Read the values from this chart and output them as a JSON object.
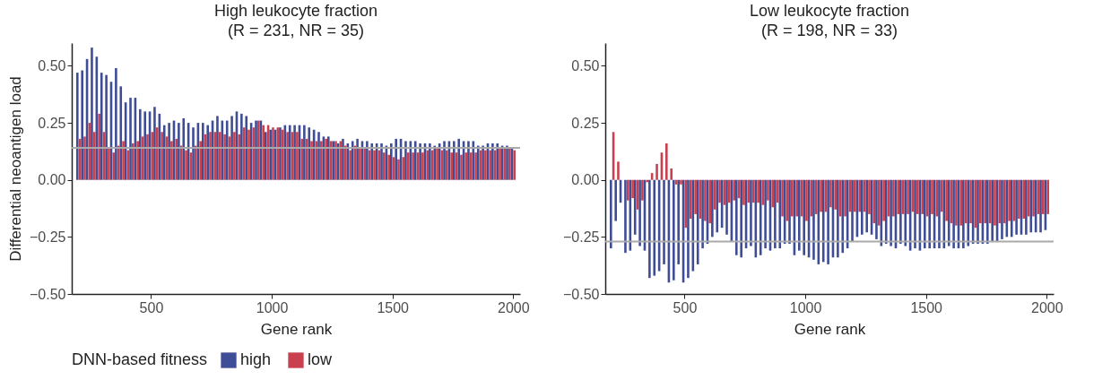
{
  "chart_data": [
    {
      "type": "bar",
      "title": "High leukocyte fraction",
      "subtitle": "(R = 231, NR = 35)",
      "xlabel": "Gene rank",
      "ylabel": "Differential neoantigen load",
      "legend_title": "DNN-based fitness",
      "legend": "bottom",
      "x": [
        200,
        220,
        240,
        260,
        280,
        300,
        320,
        340,
        360,
        380,
        400,
        420,
        440,
        460,
        480,
        500,
        520,
        540,
        560,
        580,
        600,
        620,
        640,
        660,
        680,
        700,
        720,
        740,
        760,
        780,
        800,
        820,
        840,
        860,
        880,
        900,
        920,
        940,
        960,
        980,
        1000,
        1020,
        1040,
        1060,
        1080,
        1100,
        1120,
        1140,
        1160,
        1180,
        1200,
        1220,
        1240,
        1260,
        1280,
        1300,
        1320,
        1340,
        1360,
        1380,
        1400,
        1420,
        1440,
        1460,
        1480,
        1500,
        1520,
        1540,
        1560,
        1580,
        1600,
        1620,
        1640,
        1660,
        1680,
        1700,
        1720,
        1740,
        1760,
        1780,
        1800,
        1820,
        1840,
        1860,
        1880,
        1900,
        1920,
        1940,
        1960,
        1980,
        2000
      ],
      "series": [
        {
          "name": "high",
          "color": "#3f4d97",
          "values": [
            0.47,
            0.48,
            0.53,
            0.58,
            0.54,
            0.47,
            0.46,
            0.43,
            0.49,
            0.41,
            0.34,
            0.36,
            0.36,
            0.31,
            0.3,
            0.3,
            0.32,
            0.29,
            0.24,
            0.25,
            0.26,
            0.25,
            0.27,
            0.25,
            0.23,
            0.25,
            0.25,
            0.24,
            0.26,
            0.28,
            0.26,
            0.26,
            0.28,
            0.3,
            0.29,
            0.28,
            0.25,
            0.26,
            0.26,
            0.21,
            0.22,
            0.22,
            0.23,
            0.24,
            0.24,
            0.24,
            0.24,
            0.24,
            0.23,
            0.22,
            0.21,
            0.19,
            0.19,
            0.17,
            0.16,
            0.18,
            0.16,
            0.17,
            0.18,
            0.17,
            0.17,
            0.16,
            0.16,
            0.16,
            0.15,
            0.16,
            0.18,
            0.18,
            0.17,
            0.17,
            0.17,
            0.16,
            0.16,
            0.16,
            0.15,
            0.16,
            0.17,
            0.17,
            0.17,
            0.18,
            0.17,
            0.17,
            0.17,
            0.15,
            0.15,
            0.16,
            0.16,
            0.16,
            0.15,
            0.15,
            0.14
          ]
        },
        {
          "name": "low",
          "color": "#c9404f",
          "values": [
            0.18,
            0.19,
            0.25,
            0.21,
            0.29,
            0.21,
            0.14,
            0.12,
            0.15,
            0.17,
            0.13,
            0.16,
            0.17,
            0.19,
            0.2,
            0.21,
            0.23,
            0.21,
            0.19,
            0.17,
            0.18,
            0.15,
            0.13,
            0.12,
            0.15,
            0.17,
            0.2,
            0.21,
            0.21,
            0.21,
            0.2,
            0.19,
            0.21,
            0.2,
            0.23,
            0.22,
            0.23,
            0.26,
            0.24,
            0.24,
            0.23,
            0.23,
            0.22,
            0.21,
            0.21,
            0.21,
            0.18,
            0.18,
            0.17,
            0.17,
            0.17,
            0.18,
            0.17,
            0.17,
            0.17,
            0.15,
            0.13,
            0.15,
            0.14,
            0.14,
            0.13,
            0.13,
            0.13,
            0.12,
            0.11,
            0.1,
            0.09,
            0.1,
            0.12,
            0.12,
            0.12,
            0.12,
            0.13,
            0.13,
            0.14,
            0.13,
            0.13,
            0.12,
            0.12,
            0.11,
            0.12,
            0.12,
            0.12,
            0.13,
            0.13,
            0.13,
            0.13,
            0.14,
            0.14,
            0.14,
            0.13
          ]
        }
      ],
      "xlim": [
        190,
        2010
      ],
      "xticks": [
        500,
        1000,
        1500,
        2000
      ],
      "ylim": [
        -0.5,
        0.6
      ],
      "yticks": [
        {
          "value": -0.5,
          "label": "−0.50"
        },
        {
          "value": -0.25,
          "label": "−0.25"
        },
        {
          "value": 0,
          "label": "0.00"
        },
        {
          "value": 0.25,
          "label": "0.25"
        },
        {
          "value": 0.5,
          "label": "0.50"
        }
      ],
      "ref_lines": [
        {
          "axis": "y",
          "value": 0.14,
          "color": "#aaaaaa"
        }
      ]
    },
    {
      "type": "bar",
      "title": "Low leukocyte fraction",
      "subtitle": "(R = 198, NR = 33)",
      "xlabel": "Gene rank",
      "x": [
        200,
        220,
        240,
        260,
        280,
        300,
        320,
        340,
        360,
        380,
        400,
        420,
        440,
        460,
        480,
        500,
        520,
        540,
        560,
        580,
        600,
        620,
        640,
        660,
        680,
        700,
        720,
        740,
        760,
        780,
        800,
        820,
        840,
        860,
        880,
        900,
        920,
        940,
        960,
        980,
        1000,
        1020,
        1040,
        1060,
        1080,
        1100,
        1120,
        1140,
        1160,
        1180,
        1200,
        1220,
        1240,
        1260,
        1280,
        1300,
        1320,
        1340,
        1360,
        1380,
        1400,
        1420,
        1440,
        1460,
        1480,
        1500,
        1520,
        1540,
        1560,
        1580,
        1600,
        1620,
        1640,
        1660,
        1680,
        1700,
        1720,
        1740,
        1760,
        1780,
        1800,
        1820,
        1840,
        1860,
        1880,
        1900,
        1920,
        1940,
        1960,
        1980,
        2000
      ],
      "series": [
        {
          "name": "high",
          "color": "#3f4d97",
          "values": [
            -0.3,
            -0.18,
            -0.1,
            -0.32,
            -0.31,
            -0.24,
            -0.29,
            -0.31,
            -0.43,
            -0.42,
            -0.4,
            -0.37,
            -0.45,
            -0.44,
            -0.37,
            -0.45,
            -0.43,
            -0.4,
            -0.37,
            -0.3,
            -0.28,
            -0.25,
            -0.23,
            -0.21,
            -0.24,
            -0.27,
            -0.33,
            -0.34,
            -0.3,
            -0.29,
            -0.34,
            -0.33,
            -0.3,
            -0.31,
            -0.3,
            -0.3,
            -0.28,
            -0.28,
            -0.33,
            -0.31,
            -0.33,
            -0.34,
            -0.35,
            -0.37,
            -0.36,
            -0.37,
            -0.34,
            -0.34,
            -0.32,
            -0.3,
            -0.27,
            -0.25,
            -0.24,
            -0.23,
            -0.24,
            -0.26,
            -0.29,
            -0.28,
            -0.29,
            -0.3,
            -0.28,
            -0.29,
            -0.31,
            -0.3,
            -0.31,
            -0.3,
            -0.3,
            -0.3,
            -0.3,
            -0.3,
            -0.29,
            -0.3,
            -0.3,
            -0.3,
            -0.29,
            -0.28,
            -0.28,
            -0.28,
            -0.28,
            -0.27,
            -0.27,
            -0.26,
            -0.25,
            -0.25,
            -0.24,
            -0.24,
            -0.24,
            -0.23,
            -0.23,
            -0.23,
            -0.22
          ]
        },
        {
          "name": "low",
          "color": "#c9404f",
          "values": [
            0.21,
            0.08,
            0.0,
            -0.09,
            -0.08,
            -0.13,
            -0.09,
            -0.01,
            0.03,
            0.07,
            0.12,
            0.16,
            0.05,
            -0.02,
            -0.02,
            -0.21,
            -0.17,
            -0.15,
            -0.17,
            -0.18,
            -0.19,
            -0.13,
            -0.1,
            -0.11,
            -0.1,
            -0.09,
            -0.08,
            -0.11,
            -0.1,
            -0.1,
            -0.1,
            -0.11,
            -0.09,
            -0.12,
            -0.1,
            -0.16,
            -0.18,
            -0.16,
            -0.16,
            -0.16,
            -0.18,
            -0.16,
            -0.15,
            -0.14,
            -0.14,
            -0.12,
            -0.13,
            -0.16,
            -0.16,
            -0.14,
            -0.14,
            -0.14,
            -0.14,
            -0.15,
            -0.19,
            -0.2,
            -0.18,
            -0.16,
            -0.16,
            -0.15,
            -0.15,
            -0.15,
            -0.14,
            -0.15,
            -0.15,
            -0.16,
            -0.15,
            -0.16,
            -0.14,
            -0.18,
            -0.19,
            -0.2,
            -0.2,
            -0.19,
            -0.19,
            -0.21,
            -0.19,
            -0.19,
            -0.19,
            -0.2,
            -0.19,
            -0.19,
            -0.18,
            -0.18,
            -0.17,
            -0.17,
            -0.16,
            -0.16,
            -0.15,
            -0.15,
            -0.15
          ]
        }
      ],
      "xlim": [
        190,
        2010
      ],
      "xticks": [
        500,
        1000,
        1500,
        2000
      ],
      "ylim": [
        -0.5,
        0.6
      ],
      "yticks": [
        {
          "value": -0.5,
          "label": "−0.50"
        },
        {
          "value": -0.25,
          "label": "−0.25"
        },
        {
          "value": 0,
          "label": "0.00"
        },
        {
          "value": 0.25,
          "label": "0.25"
        },
        {
          "value": 0.5,
          "label": "0.50"
        }
      ],
      "ref_lines": [
        {
          "axis": "y",
          "value": -0.27,
          "color": "#aaaaaa"
        }
      ]
    }
  ]
}
